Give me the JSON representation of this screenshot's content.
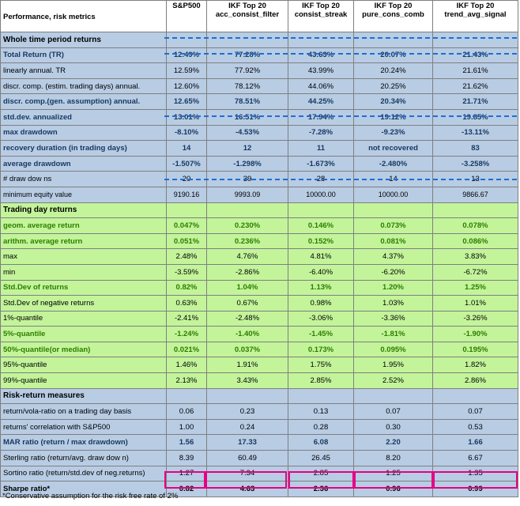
{
  "header": {
    "label": "Performance, risk metrics",
    "columns": [
      {
        "line1": "S&P500",
        "line2": ""
      },
      {
        "line1": "IKF Top 20",
        "line2": "acc_consist_filter"
      },
      {
        "line1": "IKF Top 20",
        "line2": "consist_streak"
      },
      {
        "line1": "IKF Top 20",
        "line2": "pure_cons_comb"
      },
      {
        "line1": "IKF Top 20",
        "line2": "trend_avg_signal"
      }
    ]
  },
  "sections": {
    "whole": "Whole time period returns",
    "trading": "Trading day returns",
    "risk": "Risk-return measures"
  },
  "rows": {
    "total_return": {
      "label": "Total Return (TR)",
      "values": [
        "12.49%",
        "77.28%",
        "43.63%",
        "20.07%",
        "21.43%"
      ]
    },
    "lin_annual": {
      "label": "linearly annual. TR",
      "values": [
        "12.59%",
        "77.92%",
        "43.99%",
        "20.24%",
        "21.61%"
      ]
    },
    "discr_est": {
      "label": "discr. comp. (estim. trading days) annual.",
      "values": [
        "12.60%",
        "78.12%",
        "44.06%",
        "20.25%",
        "21.62%"
      ]
    },
    "discr_gen": {
      "label": "discr. comp.(gen. assumption) annual.",
      "values": [
        "12.65%",
        "78.51%",
        "44.25%",
        "20.34%",
        "21.71%"
      ]
    },
    "std_annual": {
      "label": "std.dev. annualized",
      "values": [
        "13.01%",
        "16.51%",
        "17.94%",
        "19.12%",
        "19.85%"
      ]
    },
    "max_dd": {
      "label": "max drawdown",
      "values": [
        "-8.10%",
        "-4.53%",
        "-7.28%",
        "-9.23%",
        "-13.11%"
      ]
    },
    "recovery": {
      "label": "recovery duration (in trading days)",
      "values": [
        "14",
        "12",
        "11",
        "not recovered",
        "83"
      ]
    },
    "avg_dd": {
      "label": "average drawdown",
      "values": [
        "-1.507%",
        "-1.298%",
        "-1.673%",
        "-2.480%",
        "-3.258%"
      ]
    },
    "num_dd": {
      "label": "# draw dow ns",
      "values": [
        "20",
        "39",
        "28",
        "14",
        "13"
      ]
    },
    "min_equity": {
      "label": "minimum equity value",
      "values": [
        "9190.16",
        "9993.09",
        "10000.00",
        "10000.00",
        "9866.67"
      ]
    },
    "geom_avg": {
      "label": "geom. average return",
      "values": [
        "0.047%",
        "0.230%",
        "0.146%",
        "0.073%",
        "0.078%"
      ]
    },
    "arith_avg": {
      "label": "arithm. average return",
      "values": [
        "0.051%",
        "0.236%",
        "0.152%",
        "0.081%",
        "0.086%"
      ]
    },
    "max": {
      "label": "max",
      "values": [
        "2.48%",
        "4.76%",
        "4.81%",
        "4.37%",
        "3.83%"
      ]
    },
    "min": {
      "label": "min",
      "values": [
        "-3.59%",
        "-2.86%",
        "-6.40%",
        "-6.20%",
        "-6.72%"
      ]
    },
    "std_returns": {
      "label": "Std.Dev of returns",
      "values": [
        "0.82%",
        "1.04%",
        "1.13%",
        "1.20%",
        "1.25%"
      ]
    },
    "std_neg": {
      "label": "Std.Dev of negative returns",
      "values": [
        "0.63%",
        "0.67%",
        "0.98%",
        "1.03%",
        "1.01%"
      ]
    },
    "q1": {
      "label": "1%-quantile",
      "values": [
        "-2.41%",
        "-2.48%",
        "-3.06%",
        "-3.36%",
        "-3.26%"
      ]
    },
    "q5": {
      "label": "5%-quantile",
      "values": [
        "-1.24%",
        "-1.40%",
        "-1.45%",
        "-1.81%",
        "-1.90%"
      ]
    },
    "q50": {
      "label": "50%-quantile(or median)",
      "values": [
        "0.021%",
        "0.037%",
        "0.173%",
        "0.095%",
        "0.195%"
      ]
    },
    "q95": {
      "label": "95%-quantile",
      "values": [
        "1.46%",
        "1.91%",
        "1.75%",
        "1.95%",
        "1.82%"
      ]
    },
    "q99": {
      "label": "99%-quantile",
      "values": [
        "2.13%",
        "3.43%",
        "2.85%",
        "2.52%",
        "2.86%"
      ]
    },
    "ret_vola": {
      "label": "return/vola-ratio on a trading day basis",
      "values": [
        "0.06",
        "0.23",
        "0.13",
        "0.07",
        "0.07"
      ]
    },
    "corr": {
      "label": "returns' correlation with S&P500",
      "values": [
        "1.00",
        "0.24",
        "0.28",
        "0.30",
        "0.53"
      ]
    },
    "mar": {
      "label": "MAR ratio (return / max drawdown)",
      "values": [
        "1.56",
        "17.33",
        "6.08",
        "2.20",
        "1.66"
      ]
    },
    "sterling": {
      "label": "Sterling ratio (return/avg. draw dow n)",
      "values": [
        "8.39",
        "60.49",
        "26.45",
        "8.20",
        "6.67"
      ]
    },
    "sortino": {
      "label": "Sortino ratio (return/std.dev of neg.returns)",
      "values": [
        "1.27",
        "7.34",
        "2.85",
        "1.25",
        "1.35"
      ]
    },
    "sharpe": {
      "label": "Sharpe ratio*",
      "values": [
        "0.82",
        "4.63",
        "2.36",
        "0.96",
        "0.99"
      ]
    }
  },
  "footnote": "*Conservative assumption for the risk free rate of 2%",
  "colors": {
    "blue_bg": "#b8cce4",
    "green_bg": "#c3f49a",
    "dash": "#1f6fd1",
    "highlight": "#e60086"
  }
}
